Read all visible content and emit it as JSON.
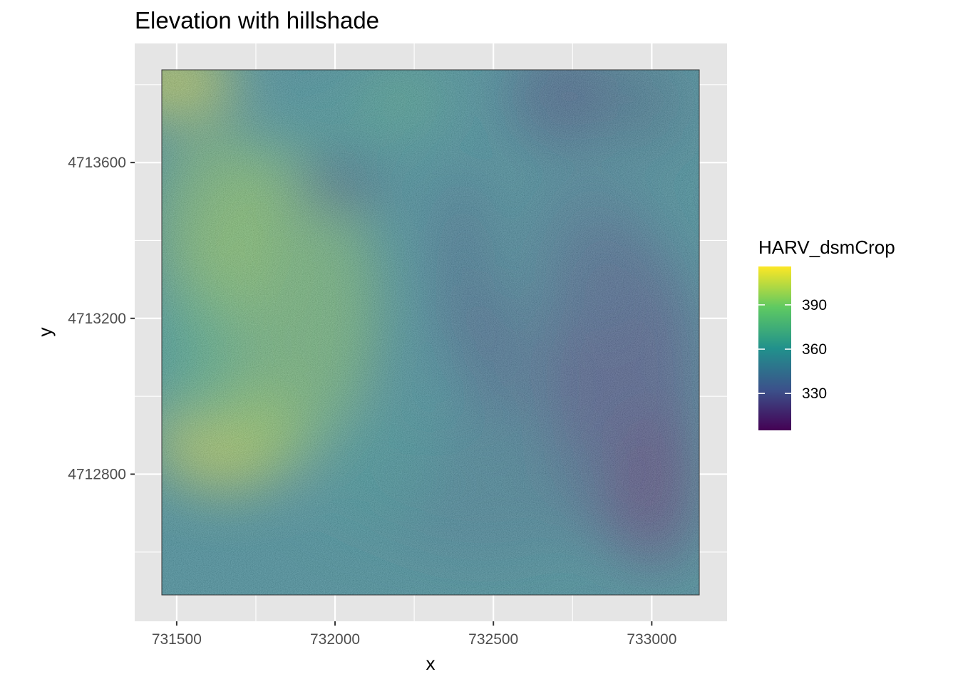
{
  "chart_data": {
    "type": "heatmap",
    "title": "Elevation with hillshade",
    "xlabel": "x",
    "ylabel": "y",
    "xlim": [
      731453,
      733150
    ],
    "ylim": [
      4712490,
      4713838
    ],
    "x_ticks": [
      731500,
      732000,
      732500,
      733000
    ],
    "x_tick_labels": [
      "731500",
      "732000",
      "732500",
      "733000"
    ],
    "y_ticks": [
      4712800,
      4713200,
      4713600
    ],
    "y_tick_labels": [
      "4712800",
      "4713200",
      "4713600"
    ],
    "raster_extent": {
      "x": [
        731453,
        733150
      ],
      "y": [
        4712490,
        4713838
      ]
    },
    "grid": true,
    "legend": {
      "title": "HARV_dsmCrop",
      "position": "right",
      "value_range": [
        305,
        416
      ],
      "ticks": [
        330,
        360,
        390
      ],
      "tick_labels": [
        "330",
        "360",
        "390"
      ]
    },
    "colormap": "viridis",
    "colors": [
      "#440154",
      "#3b528b",
      "#21918c",
      "#5ec962",
      "#fde725"
    ],
    "panel_background": "#e5e5e5",
    "grid_color": "#ffffff"
  }
}
